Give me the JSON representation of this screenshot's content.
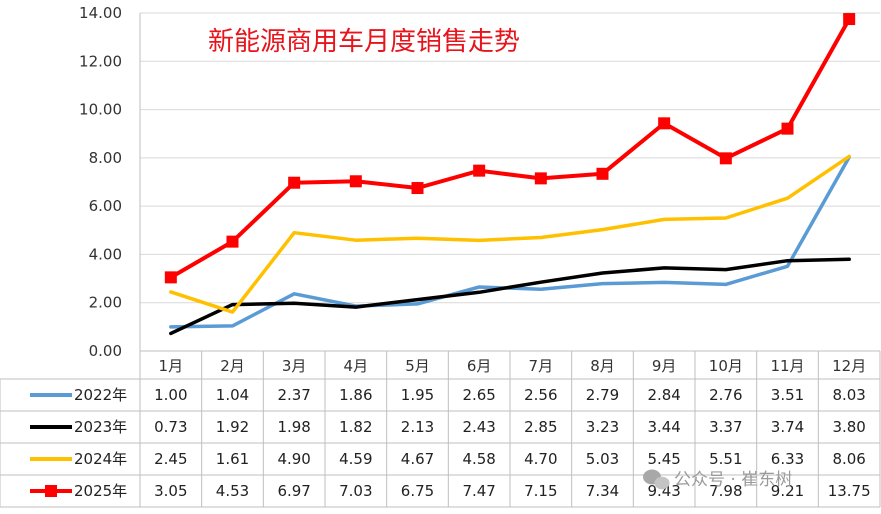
{
  "chart_data": {
    "type": "line",
    "title": "新能源商用车月度销售走势",
    "categories": [
      "1月",
      "2月",
      "3月",
      "4月",
      "5月",
      "6月",
      "7月",
      "8月",
      "9月",
      "10月",
      "11月",
      "12月"
    ],
    "ylim": [
      0,
      14
    ],
    "yticks": [
      "0.00",
      "2.00",
      "4.00",
      "6.00",
      "8.00",
      "10.00",
      "12.00",
      "14.00"
    ],
    "grid": true,
    "legend": "data-table-left",
    "series": [
      {
        "name": "2022年",
        "color": "#5b9bd5",
        "marker": "none",
        "values": [
          1.0,
          1.04,
          2.37,
          1.86,
          1.95,
          2.65,
          2.56,
          2.79,
          2.84,
          2.76,
          3.51,
          8.03
        ],
        "labels": [
          "1.00",
          "1.04",
          "2.37",
          "1.86",
          "1.95",
          "2.65",
          "2.56",
          "2.79",
          "2.84",
          "2.76",
          "3.51",
          "8.03"
        ]
      },
      {
        "name": "2023年",
        "color": "#000000",
        "marker": "none",
        "values": [
          0.73,
          1.92,
          1.98,
          1.82,
          2.13,
          2.43,
          2.85,
          3.23,
          3.44,
          3.37,
          3.74,
          3.8
        ],
        "labels": [
          "0.73",
          "1.92",
          "1.98",
          "1.82",
          "2.13",
          "2.43",
          "2.85",
          "3.23",
          "3.44",
          "3.37",
          "3.74",
          "3.80"
        ]
      },
      {
        "name": "2024年",
        "color": "#ffc000",
        "marker": "none",
        "values": [
          2.45,
          1.61,
          4.9,
          4.59,
          4.67,
          4.58,
          4.7,
          5.03,
          5.45,
          5.51,
          6.33,
          8.06
        ],
        "labels": [
          "2.45",
          "1.61",
          "4.90",
          "4.59",
          "4.67",
          "4.58",
          "4.70",
          "5.03",
          "5.45",
          "5.51",
          "6.33",
          "8.06"
        ]
      },
      {
        "name": "2025年",
        "color": "#ff0000",
        "marker": "square",
        "values": [
          3.05,
          4.53,
          6.97,
          7.03,
          6.75,
          7.47,
          7.15,
          7.34,
          9.43,
          7.98,
          9.21,
          13.75
        ],
        "labels": [
          "3.05",
          "4.53",
          "6.97",
          "7.03",
          "6.75",
          "7.47",
          "7.15",
          "7.34",
          "9.43",
          "7.98",
          "9.21",
          "13.75"
        ]
      }
    ]
  },
  "watermark": "公众号 · 崔东树",
  "watermark_icon": "wechat-icon"
}
